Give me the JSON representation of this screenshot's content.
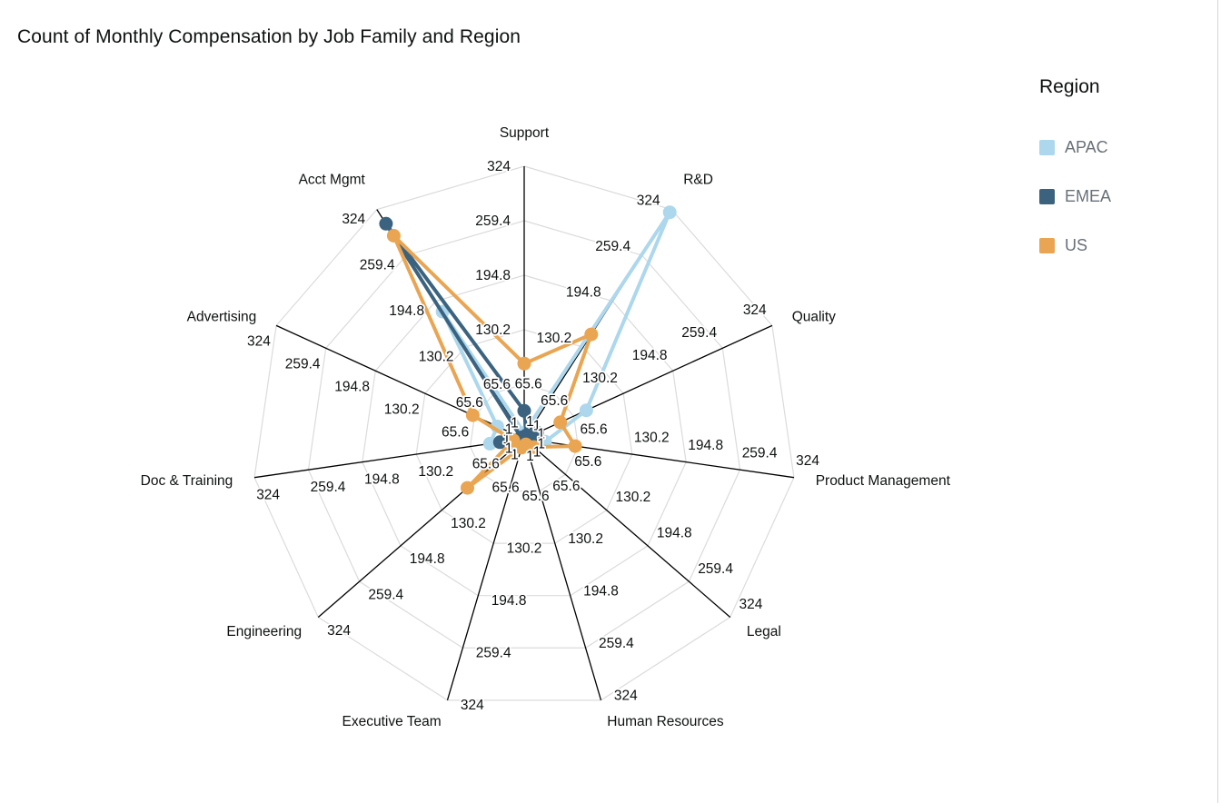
{
  "title": "Count of Monthly Compensation by Job Family and Region",
  "legend": {
    "title": "Region"
  },
  "chart_data": {
    "type": "radar",
    "title": "Count of Monthly Compensation by Job Family and Region",
    "legend_title": "Region",
    "legend_position": "right",
    "grid": true,
    "categories": [
      "Support",
      "R&D",
      "Quality",
      "Product Management",
      "Legal",
      "Human Resources",
      "Executive Team",
      "Engineering",
      "Doc & Training",
      "Advertising",
      "Acct Mgmt"
    ],
    "radial_axis": {
      "min": 1,
      "max": 324,
      "tick_values": [
        1,
        65.6,
        130.2,
        194.8,
        259.4,
        324
      ],
      "tick_labels": [
        "1",
        "65.6",
        "130.2",
        "194.8",
        "259.4",
        "324"
      ]
    },
    "series": [
      {
        "name": "APAC",
        "color": "#ACD7EC",
        "values": [
          8,
          320,
          82,
          26,
          6,
          8,
          6,
          12,
          42,
          36,
          180
        ]
      },
      {
        "name": "EMEA",
        "color": "#3B6380",
        "values": [
          34,
          6,
          18,
          10,
          6,
          4,
          8,
          6,
          30,
          5,
          304
        ]
      },
      {
        "name": "US",
        "color": "#E9A552",
        "values": [
          90,
          148,
          48,
          62,
          16,
          8,
          12,
          90,
          14,
          68,
          287
        ]
      }
    ]
  },
  "style": {
    "grid_color": "#dbdbdb",
    "axis_color": "#000000",
    "label_color": "#0f1111"
  }
}
